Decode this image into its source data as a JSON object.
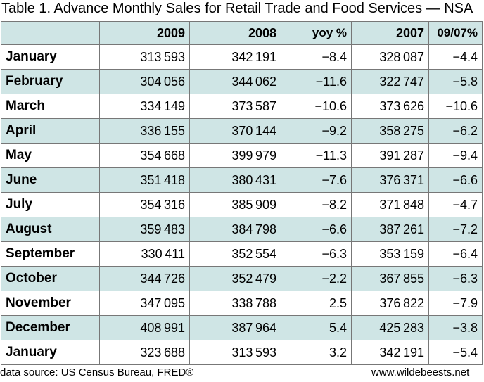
{
  "title": "Table 1. Advance Monthly Sales for Retail Trade and Food Services — NSA",
  "chart_data": {
    "type": "table",
    "columns": [
      "",
      "2009",
      "2008",
      "yoy %",
      "2007",
      "09/07%"
    ],
    "rows": [
      {
        "month": "January",
        "v2009": "313 593",
        "v2008": "342 191",
        "yoy": "−8.4",
        "v2007": "328 087",
        "g": "−4.4"
      },
      {
        "month": "February",
        "v2009": "304 056",
        "v2008": "344 062",
        "yoy": "−11.6",
        "v2007": "322 747",
        "g": "−5.8"
      },
      {
        "month": "March",
        "v2009": "334 149",
        "v2008": "373 587",
        "yoy": "−10.6",
        "v2007": "373 626",
        "g": "−10.6"
      },
      {
        "month": "April",
        "v2009": "336 155",
        "v2008": "370 144",
        "yoy": "−9.2",
        "v2007": "358 275",
        "g": "−6.2"
      },
      {
        "month": "May",
        "v2009": "354 668",
        "v2008": "399 979",
        "yoy": "−11.3",
        "v2007": "391 287",
        "g": "−9.4"
      },
      {
        "month": "June",
        "v2009": "351 418",
        "v2008": "380 431",
        "yoy": "−7.6",
        "v2007": "376 371",
        "g": "−6.6"
      },
      {
        "month": "July",
        "v2009": "354 316",
        "v2008": "385 909",
        "yoy": "−8.2",
        "v2007": "371 848",
        "g": "−4.7"
      },
      {
        "month": "August",
        "v2009": "359 483",
        "v2008": "384 798",
        "yoy": "−6.6",
        "v2007": "387 261",
        "g": "−7.2"
      },
      {
        "month": "September",
        "v2009": "330 411",
        "v2008": "352 554",
        "yoy": "−6.3",
        "v2007": "353 159",
        "g": "−6.4"
      },
      {
        "month": "October",
        "v2009": "344 726",
        "v2008": "352 479",
        "yoy": "−2.2",
        "v2007": "367 855",
        "g": "−6.3"
      },
      {
        "month": "November",
        "v2009": "347 095",
        "v2008": "338 788",
        "yoy": "2.5",
        "v2007": "376 822",
        "g": "−7.9"
      },
      {
        "month": "December",
        "v2009": "408 991",
        "v2008": "387 964",
        "yoy": "5.4",
        "v2007": "425 283",
        "g": "−3.8"
      },
      {
        "month": "January",
        "v2009": "323 688",
        "v2008": "313 593",
        "yoy": "3.2",
        "v2007": "342 191",
        "g": "−5.4"
      }
    ]
  },
  "footer": {
    "source": "data source: US Census Bureau, FRED®",
    "site": "www.wildebeests.net"
  },
  "colors": {
    "stripe": "#cfe5e5",
    "border": "#777777"
  }
}
